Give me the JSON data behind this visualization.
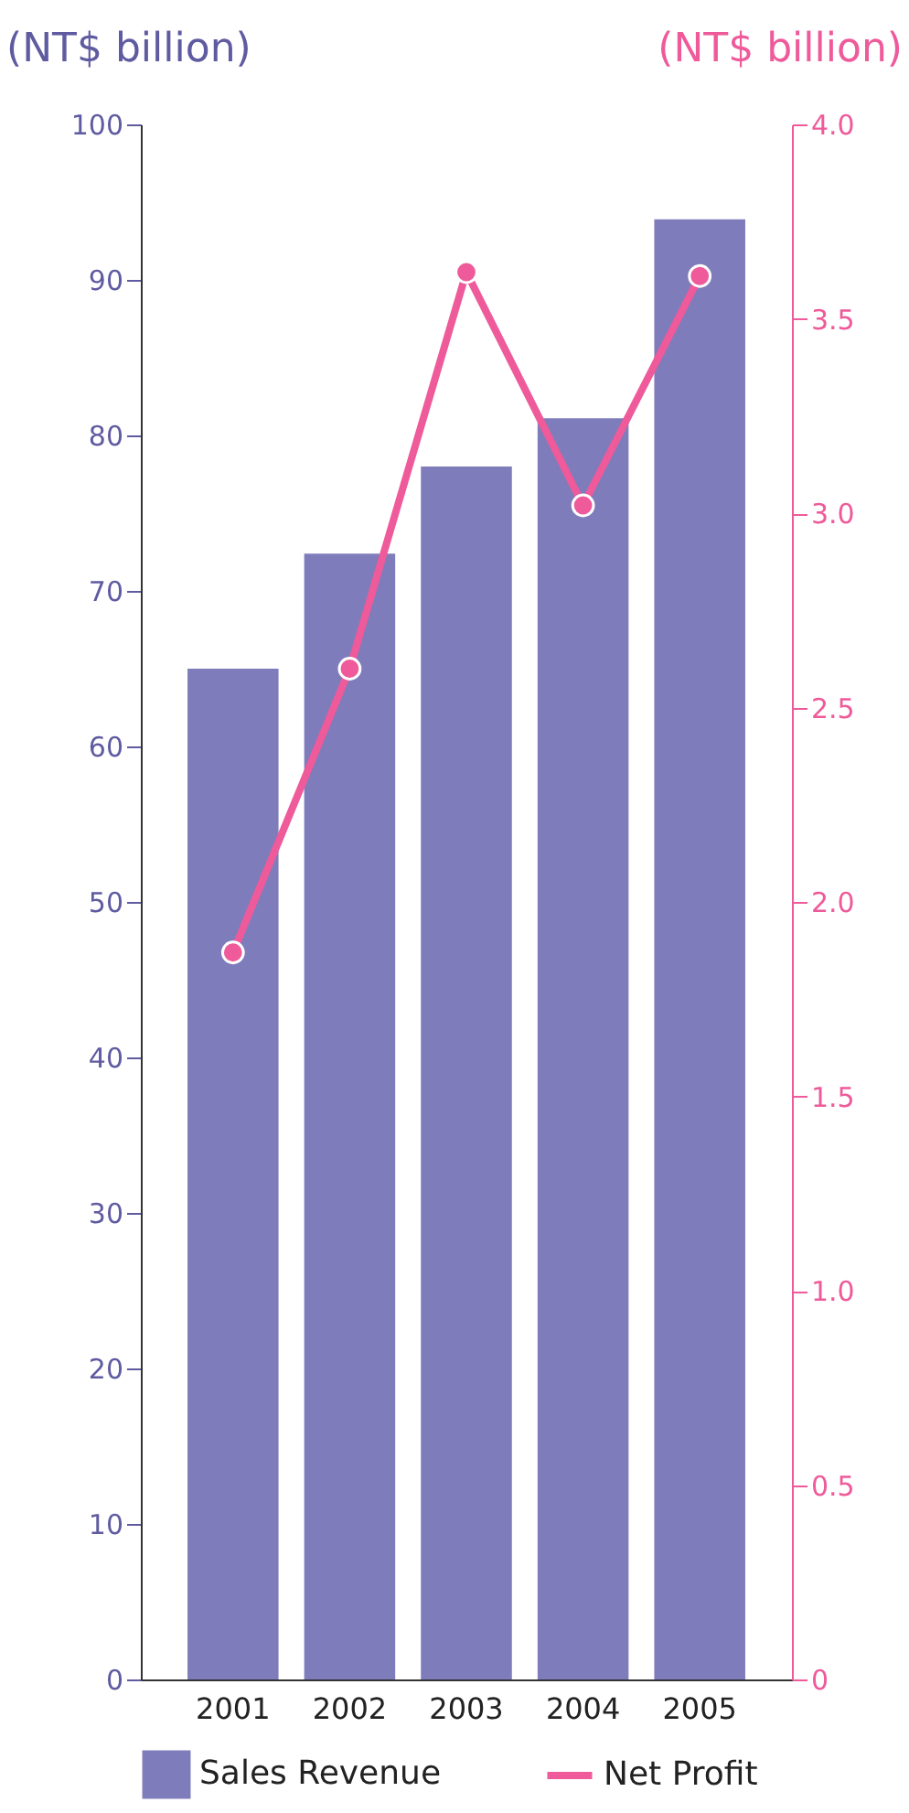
{
  "chart_data": {
    "type": "bar",
    "categories": [
      "2001",
      "2002",
      "2003",
      "2004",
      "2005"
    ],
    "series": [
      {
        "name": "Sales Revenue",
        "color": "#7f7cbb",
        "values": [
          65,
          72.4,
          78,
          81.1,
          93.9
        ]
      },
      {
        "name": "Net Profit",
        "type": "line",
        "axis": "y2",
        "color": "#ee5a9a",
        "values": [
          1.87,
          2.6,
          3.62,
          3.02,
          3.61
        ]
      }
    ],
    "ylabel": "(NT$ billion)",
    "y2label": "(NT$ billion)",
    "ylim": [
      0,
      100
    ],
    "yticks": [
      0,
      10,
      20,
      30,
      40,
      50,
      60,
      70,
      80,
      90,
      100
    ],
    "y2lim": [
      0,
      4
    ],
    "y2ticks": [
      0,
      {
        "value": 0.5,
        "label": "0.5"
      },
      {
        "value": 1,
        "label": "1.0"
      },
      {
        "value": 1.5,
        "label": "1.5"
      },
      {
        "value": 2,
        "label": "2.0"
      },
      {
        "value": 2.5,
        "label": "2.5"
      },
      {
        "value": 3,
        "label": "3.0"
      },
      {
        "value": 3.5,
        "label": "3.5"
      },
      {
        "value": 4,
        "label": "4.0"
      }
    ],
    "legend": "bottom",
    "marker": "circle",
    "grid": false
  }
}
